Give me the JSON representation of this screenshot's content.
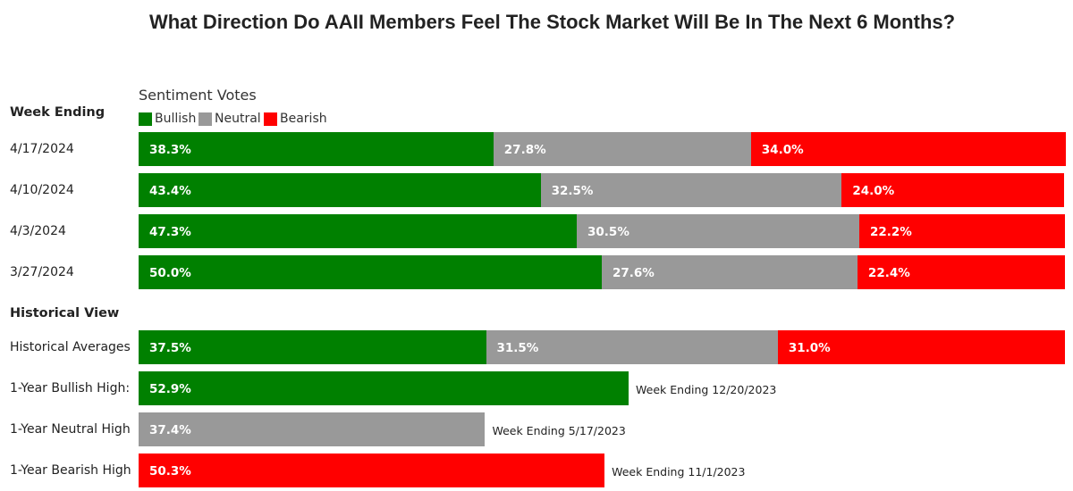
{
  "title": "What Direction Do AAII Members Feel The Stock Market Will Be In The Next 6 Months?",
  "chart_data": {
    "type": "bar",
    "orientation": "horizontal",
    "stacked": true,
    "title": "What Direction Do AAII Members Feel The Stock Market Will Be In The Next 6 Months?",
    "legend_title": "Sentiment Votes",
    "legend_placement": "top-left",
    "series_names": [
      "Bullish",
      "Neutral",
      "Bearish"
    ],
    "colors": {
      "Bullish": "#008000",
      "Neutral": "#999999",
      "Bearish": "#ff0000"
    },
    "sections": [
      {
        "label": "Week Ending",
        "rows": [
          {
            "label": "4/17/2024",
            "values": {
              "Bullish": 38.3,
              "Neutral": 27.8,
              "Bearish": 34.0
            }
          },
          {
            "label": "4/10/2024",
            "values": {
              "Bullish": 43.4,
              "Neutral": 32.5,
              "Bearish": 24.0
            }
          },
          {
            "label": "4/3/2024",
            "values": {
              "Bullish": 47.3,
              "Neutral": 30.5,
              "Bearish": 22.2
            }
          },
          {
            "label": "3/27/2024",
            "values": {
              "Bullish": 50.0,
              "Neutral": 27.6,
              "Bearish": 22.4
            }
          }
        ]
      },
      {
        "label": "Historical View",
        "rows": [
          {
            "label": "Historical Averages",
            "values": {
              "Bullish": 37.5,
              "Neutral": 31.5,
              "Bearish": 31.0
            }
          },
          {
            "label": "1-Year Bullish High:",
            "values": {
              "Bullish": 52.9
            },
            "note": "Week Ending 12/20/2023"
          },
          {
            "label": "1-Year Neutral High",
            "values": {
              "Neutral": 37.4
            },
            "note": "Week Ending 5/17/2023"
          },
          {
            "label": "1-Year Bearish High",
            "values": {
              "Bearish": 50.3
            },
            "note": "Week Ending 11/1/2023"
          }
        ]
      }
    ]
  }
}
